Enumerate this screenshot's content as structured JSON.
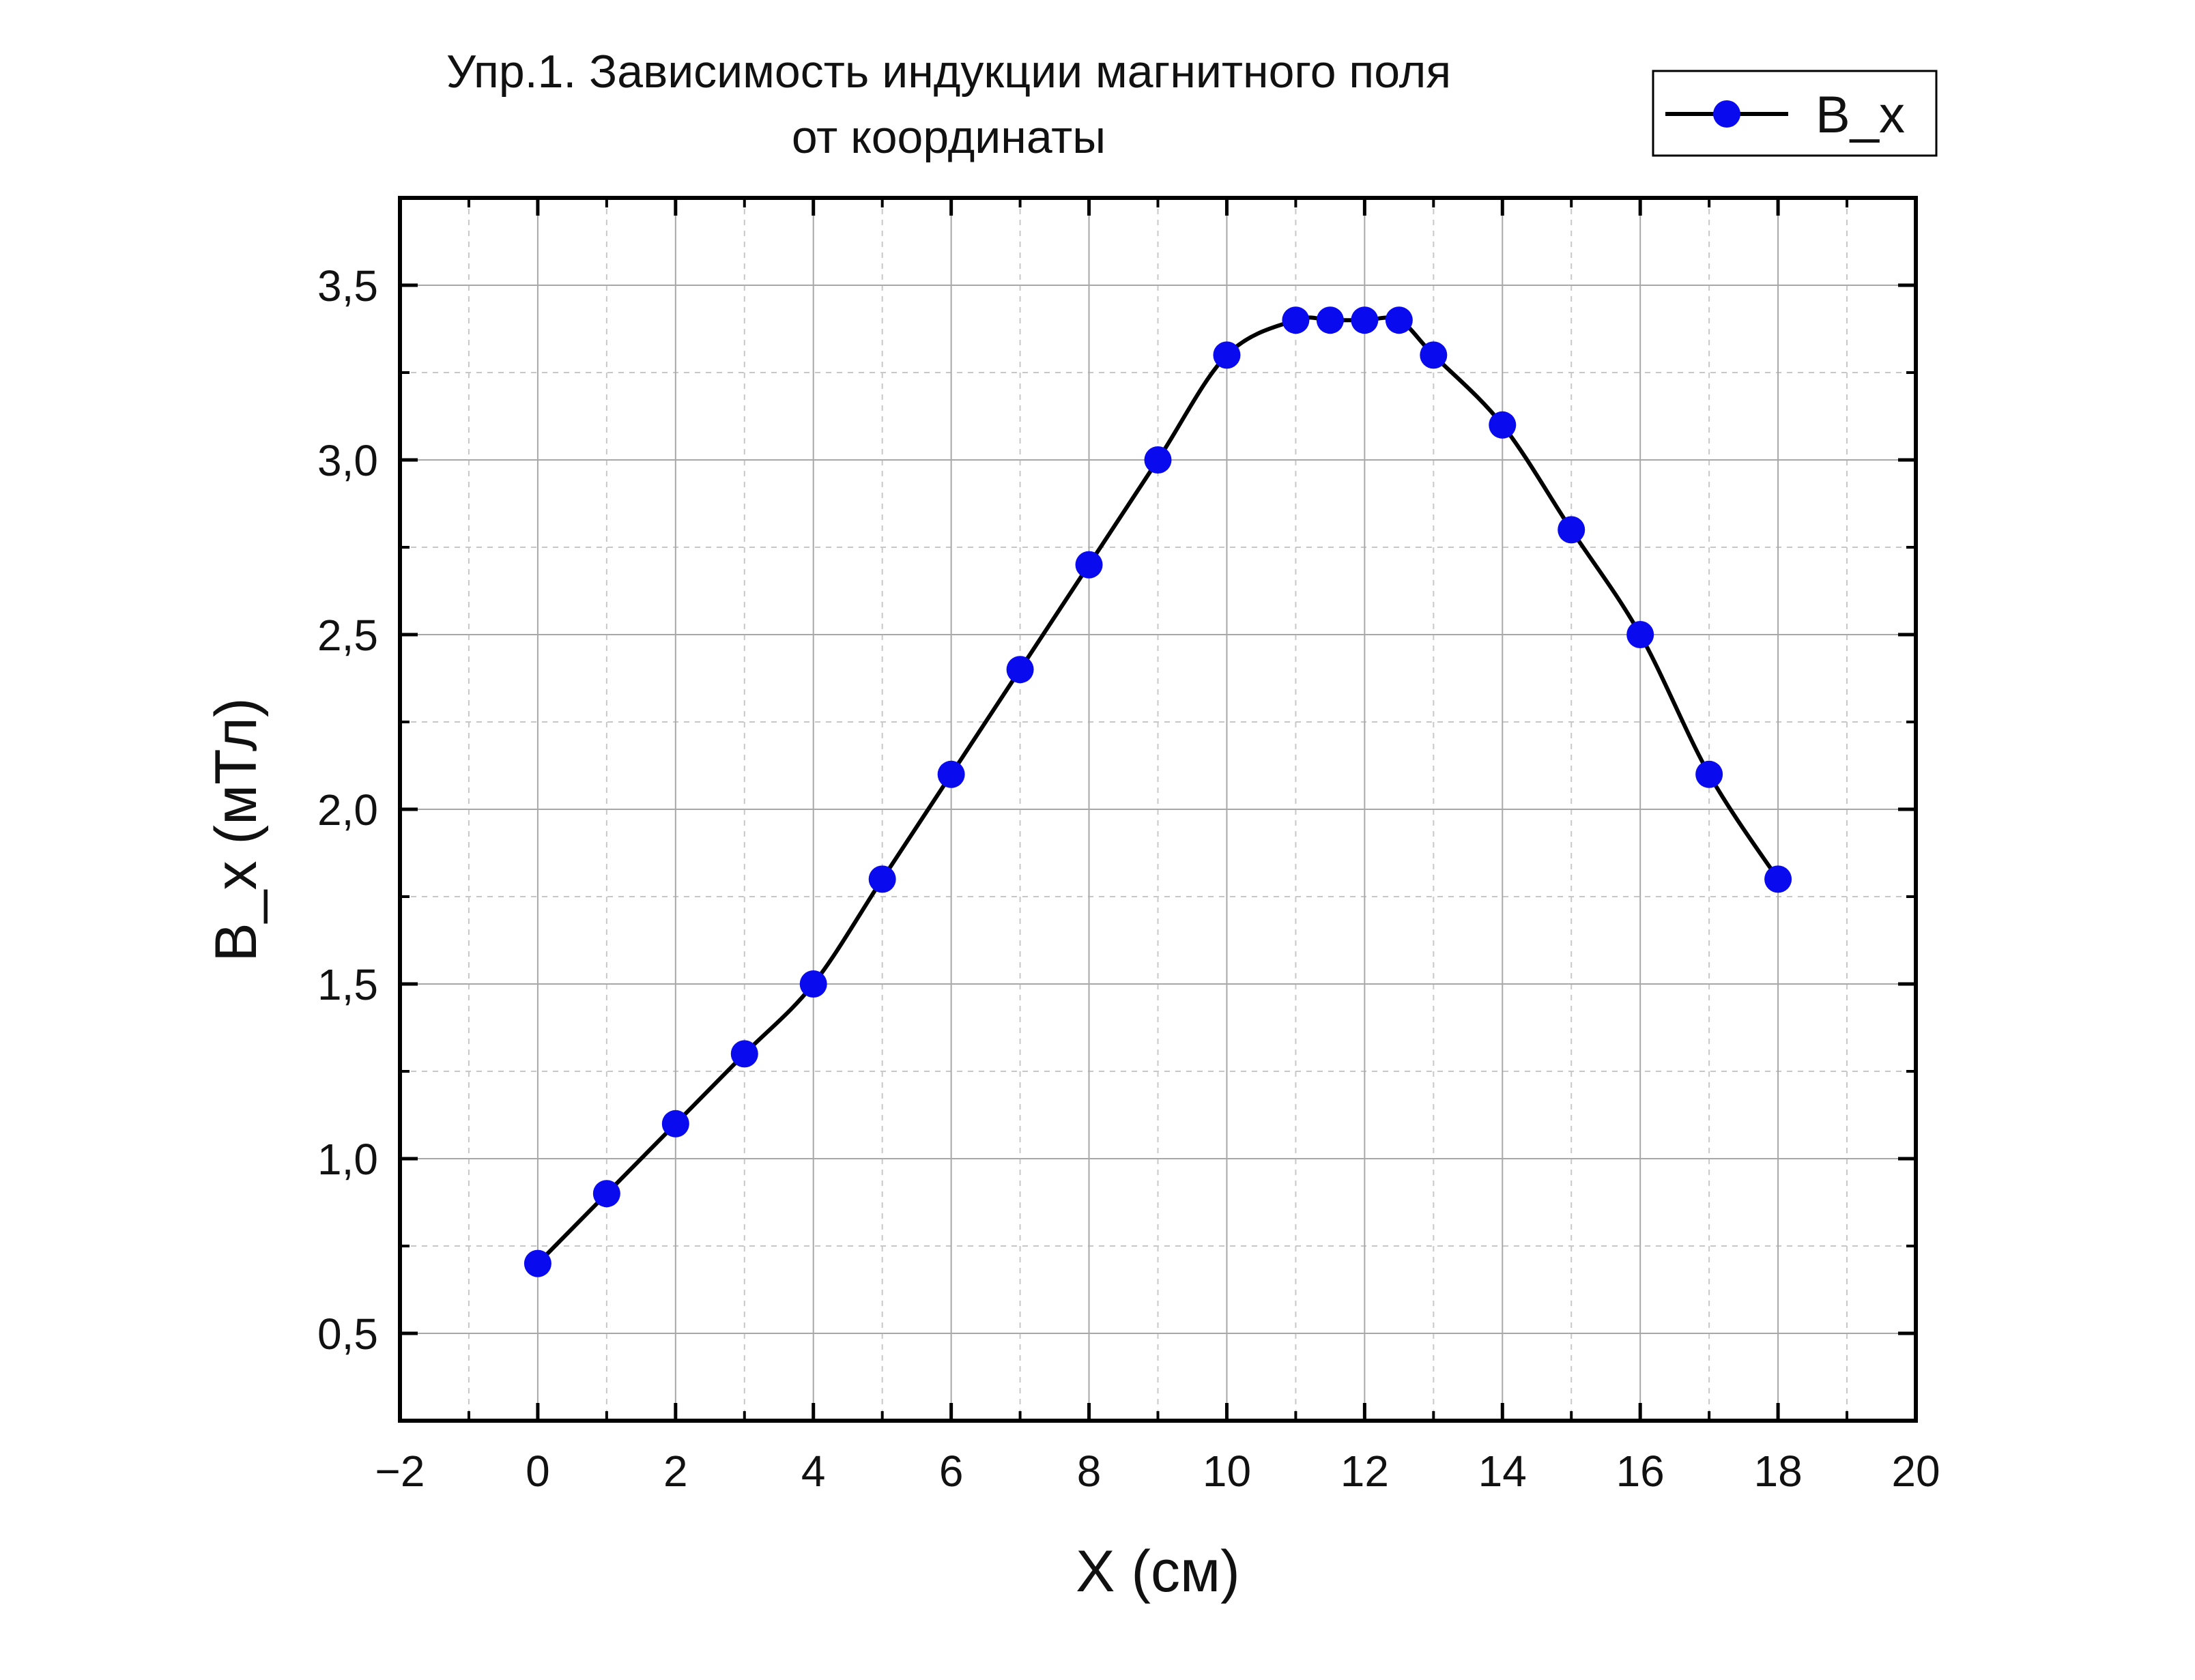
{
  "chart_data": {
    "type": "line",
    "title": [
      "Упр.1. Зависимость индукции магнитного поля",
      "от координаты"
    ],
    "xlabel": "X (см)",
    "ylabel": "B_x (мТл)",
    "xlim": [
      -2,
      20
    ],
    "ylim": [
      0.25,
      3.75
    ],
    "xticks": [
      -2,
      0,
      2,
      4,
      6,
      8,
      10,
      12,
      14,
      16,
      18,
      20
    ],
    "xtick_labels": [
      "−2",
      "0",
      "2",
      "4",
      "6",
      "8",
      "10",
      "12",
      "14",
      "16",
      "18",
      "20"
    ],
    "yticks": [
      0.5,
      1.0,
      1.5,
      2.0,
      2.5,
      3.0,
      3.5
    ],
    "ytick_labels": [
      "0,5",
      "1,0",
      "1,5",
      "2,0",
      "2,5",
      "3,0",
      "3,5"
    ],
    "grid": true,
    "legend_position": "top-right",
    "series": [
      {
        "name": "B_x",
        "line_color": "#000000",
        "marker_color": "#0a0aee",
        "smooth": true,
        "x": [
          0,
          1,
          2,
          3,
          4,
          5,
          6,
          7,
          8,
          9,
          10,
          11,
          11.5,
          12,
          12.5,
          13,
          14,
          15,
          16,
          17,
          18
        ],
        "y": [
          0.7,
          0.9,
          1.1,
          1.3,
          1.5,
          1.8,
          2.1,
          2.4,
          2.7,
          3.0,
          3.3,
          3.4,
          3.4,
          3.4,
          3.4,
          3.3,
          3.1,
          2.8,
          2.5,
          2.1,
          1.8
        ]
      }
    ]
  }
}
